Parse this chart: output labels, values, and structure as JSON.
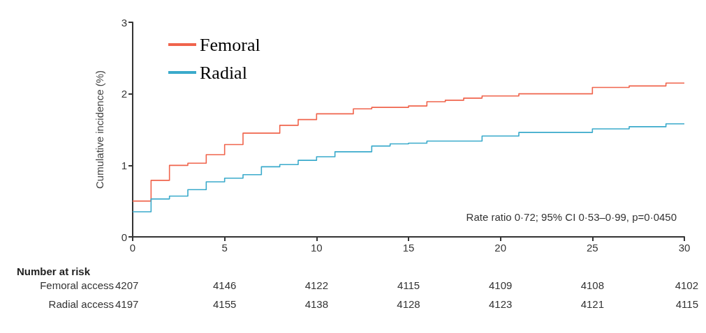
{
  "chart_data": {
    "type": "step",
    "ylabel": "Cumulative incidence (%)",
    "xlim": [
      0,
      30
    ],
    "xticks": [
      0,
      5,
      10,
      15,
      20,
      25,
      30
    ],
    "ylim": [
      0,
      3
    ],
    "yticks": [
      0,
      1,
      2,
      3
    ],
    "grid": false,
    "legend": "top left",
    "marker": "none",
    "line_style": "solid",
    "series": [
      {
        "name": "Femoral",
        "color": "#f0644c",
        "x": [
          0,
          1,
          2,
          3,
          4,
          5,
          6,
          8,
          9,
          10,
          12,
          13,
          15,
          16,
          17,
          18,
          19,
          21,
          25,
          27,
          29,
          30
        ],
        "values": [
          0.5,
          0.79,
          1.0,
          1.03,
          1.15,
          1.29,
          1.45,
          1.56,
          1.64,
          1.72,
          1.79,
          1.81,
          1.83,
          1.89,
          1.91,
          1.94,
          1.97,
          2.0,
          2.09,
          2.11,
          2.15,
          2.15
        ]
      },
      {
        "name": "Radial",
        "color": "#3aaacb",
        "x": [
          0,
          1,
          2,
          3,
          4,
          5,
          6,
          7,
          8,
          9,
          10,
          11,
          13,
          14,
          15,
          16,
          19,
          21,
          25,
          27,
          29,
          30
        ],
        "values": [
          0.35,
          0.53,
          0.57,
          0.66,
          0.77,
          0.82,
          0.87,
          0.98,
          1.01,
          1.07,
          1.12,
          1.19,
          1.27,
          1.3,
          1.31,
          1.34,
          1.41,
          1.46,
          1.51,
          1.54,
          1.58,
          1.58
        ]
      }
    ],
    "annotations": [
      "Rate ratio 0·72; 95% CI 0·53–0·99, p=0·0450",
      "Number at risk",
      "Femoral access",
      "4207",
      "4146",
      "4122",
      "4115",
      "4109",
      "4108",
      "4102",
      "Radial access",
      "4197",
      "4155",
      "4138",
      "4128",
      "4123",
      "4121",
      "4115"
    ]
  }
}
